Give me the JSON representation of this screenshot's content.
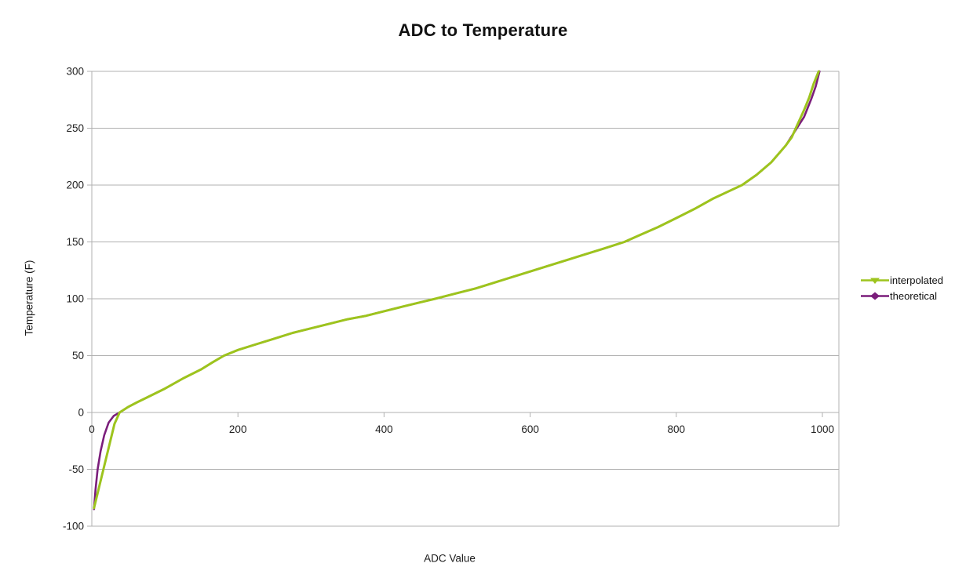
{
  "title": "ADC to Temperature",
  "axes": {
    "x_label": "ADC Value",
    "y_label": "Temperature (F)"
  },
  "legend": {
    "position": "right",
    "items": [
      {
        "label": "interpolated",
        "color": "#9DC41D",
        "marker": "triangle-down"
      },
      {
        "label": "theoretical",
        "color": "#7B1E7B",
        "marker": "diamond"
      }
    ]
  },
  "colors": {
    "background": "#ffffff",
    "gridline": "#b0b0b0",
    "tick_text": "#222222",
    "title_text": "#111111",
    "series_interpolated": "#9DC41D",
    "series_theoretical": "#7B1E7B"
  },
  "chart_data": {
    "type": "line",
    "title": "ADC to Temperature",
    "xlabel": "ADC Value",
    "ylabel": "Temperature (F)",
    "xlim": [
      0,
      1000
    ],
    "ylim": [
      -100,
      300
    ],
    "x_ticks": [
      0,
      200,
      400,
      600,
      800,
      1000
    ],
    "y_ticks": [
      300,
      250,
      200,
      150,
      100,
      50,
      0,
      -50,
      -100
    ],
    "grid": "horizontal",
    "legend_position": "right",
    "series": [
      {
        "name": "theoretical",
        "color": "#7B1E7B",
        "marker": "diamond",
        "points": [
          [
            3,
            -85
          ],
          [
            5,
            -68
          ],
          [
            8,
            -50
          ],
          [
            12,
            -34
          ],
          [
            17,
            -20
          ],
          [
            23,
            -9
          ],
          [
            30,
            -3
          ],
          [
            38,
            0
          ],
          [
            50,
            5
          ],
          [
            62,
            9
          ],
          [
            75,
            13
          ],
          [
            100,
            21
          ],
          [
            125,
            30
          ],
          [
            150,
            38
          ],
          [
            165,
            44
          ],
          [
            181,
            50
          ],
          [
            200,
            55
          ],
          [
            225,
            60
          ],
          [
            250,
            65
          ],
          [
            275,
            70
          ],
          [
            300,
            74
          ],
          [
            325,
            78
          ],
          [
            350,
            82
          ],
          [
            375,
            85
          ],
          [
            400,
            89
          ],
          [
            425,
            93
          ],
          [
            450,
            97
          ],
          [
            470,
            100
          ],
          [
            500,
            105
          ],
          [
            525,
            109
          ],
          [
            550,
            114
          ],
          [
            575,
            119
          ],
          [
            600,
            124
          ],
          [
            625,
            129
          ],
          [
            650,
            134
          ],
          [
            675,
            139
          ],
          [
            700,
            144
          ],
          [
            729,
            150
          ],
          [
            750,
            156
          ],
          [
            775,
            163
          ],
          [
            800,
            171
          ],
          [
            825,
            179
          ],
          [
            850,
            188
          ],
          [
            870,
            194
          ],
          [
            890,
            200
          ],
          [
            910,
            209
          ],
          [
            930,
            220
          ],
          [
            950,
            235
          ],
          [
            965,
            250
          ],
          [
            975,
            260
          ],
          [
            985,
            276
          ],
          [
            991,
            287
          ],
          [
            996,
            300
          ]
        ]
      },
      {
        "name": "interpolated",
        "color": "#9DC41D",
        "marker": "triangle-down",
        "points": [
          [
            3,
            -84
          ],
          [
            31,
            -10
          ],
          [
            38,
            0
          ],
          [
            50,
            5
          ],
          [
            62,
            9
          ],
          [
            75,
            13
          ],
          [
            100,
            21
          ],
          [
            125,
            30
          ],
          [
            150,
            38
          ],
          [
            165,
            44
          ],
          [
            181,
            50
          ],
          [
            200,
            55
          ],
          [
            225,
            60
          ],
          [
            250,
            65
          ],
          [
            275,
            70
          ],
          [
            300,
            74
          ],
          [
            325,
            78
          ],
          [
            350,
            82
          ],
          [
            375,
            85
          ],
          [
            400,
            89
          ],
          [
            425,
            93
          ],
          [
            450,
            97
          ],
          [
            470,
            100
          ],
          [
            500,
            105
          ],
          [
            525,
            109
          ],
          [
            550,
            114
          ],
          [
            575,
            119
          ],
          [
            600,
            124
          ],
          [
            625,
            129
          ],
          [
            650,
            134
          ],
          [
            675,
            139
          ],
          [
            700,
            144
          ],
          [
            729,
            150
          ],
          [
            750,
            156
          ],
          [
            775,
            163
          ],
          [
            800,
            171
          ],
          [
            825,
            179
          ],
          [
            850,
            188
          ],
          [
            870,
            194
          ],
          [
            890,
            200
          ],
          [
            910,
            209
          ],
          [
            930,
            220
          ],
          [
            950,
            235
          ],
          [
            958,
            242
          ],
          [
            965,
            252
          ],
          [
            975,
            266
          ],
          [
            982,
            277
          ],
          [
            988,
            289
          ],
          [
            995,
            300
          ]
        ]
      }
    ]
  }
}
